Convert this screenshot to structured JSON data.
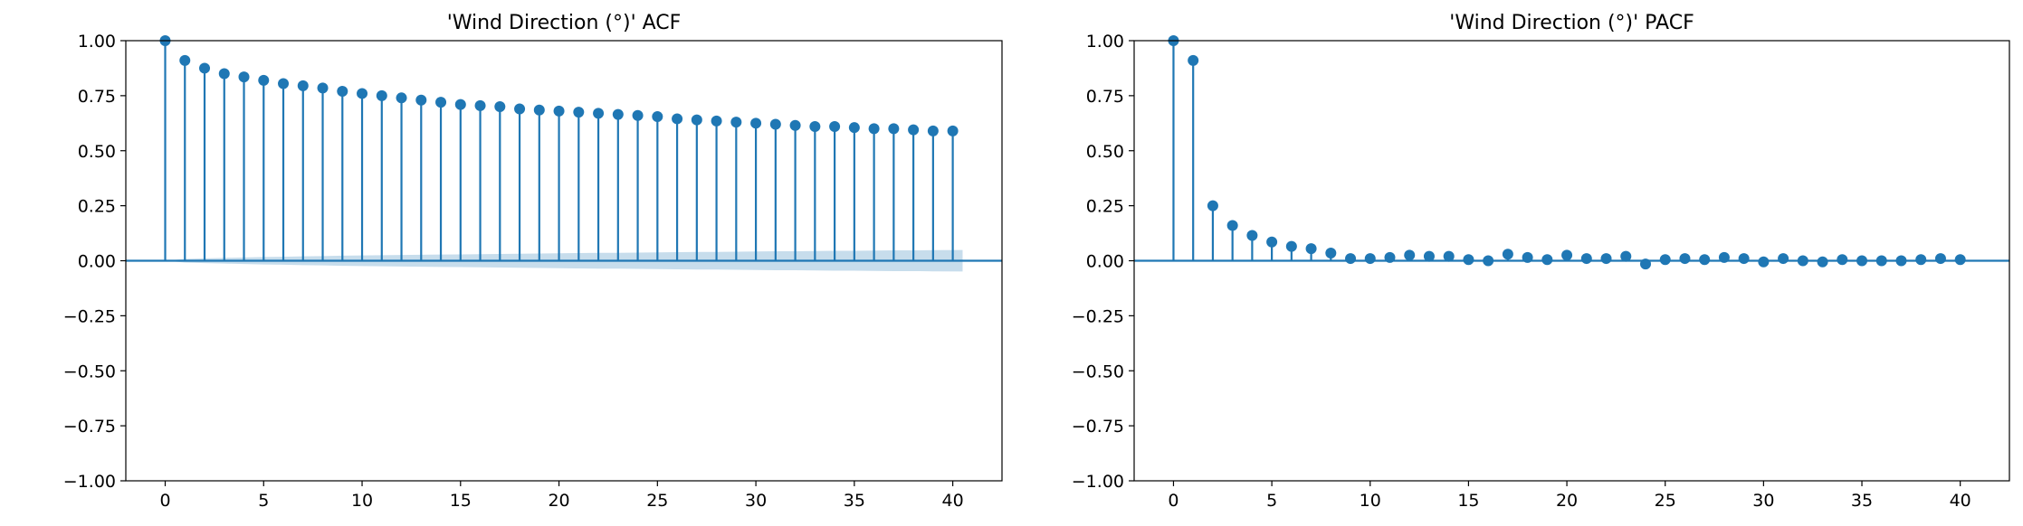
{
  "chart_data": [
    {
      "type": "stem",
      "title": "'Wind Direction (°)' ACF",
      "xlabel": "",
      "ylabel": "",
      "xlim": [
        -2,
        42.5
      ],
      "ylim": [
        -1.0,
        1.0
      ],
      "xticks": [
        0,
        5,
        10,
        15,
        20,
        25,
        30,
        35,
        40
      ],
      "yticks": [
        -1.0,
        -0.75,
        -0.5,
        -0.25,
        0.0,
        0.25,
        0.5,
        0.75,
        1.0
      ],
      "xtick_labels": [
        "0",
        "5",
        "10",
        "15",
        "20",
        "25",
        "30",
        "35",
        "40"
      ],
      "ytick_labels": [
        "−1.00",
        "−0.75",
        "−0.50",
        "−0.25",
        "0.00",
        "0.25",
        "0.50",
        "0.75",
        "1.00"
      ],
      "grid": false,
      "color": "#1f77b4",
      "band_color": "#1f77b4",
      "lags": [
        0,
        1,
        2,
        3,
        4,
        5,
        6,
        7,
        8,
        9,
        10,
        11,
        12,
        13,
        14,
        15,
        16,
        17,
        18,
        19,
        20,
        21,
        22,
        23,
        24,
        25,
        26,
        27,
        28,
        29,
        30,
        31,
        32,
        33,
        34,
        35,
        36,
        37,
        38,
        39,
        40
      ],
      "values": [
        1.0,
        0.91,
        0.875,
        0.85,
        0.835,
        0.82,
        0.805,
        0.795,
        0.785,
        0.77,
        0.76,
        0.75,
        0.74,
        0.73,
        0.72,
        0.71,
        0.705,
        0.7,
        0.69,
        0.685,
        0.68,
        0.675,
        0.67,
        0.665,
        0.66,
        0.655,
        0.645,
        0.64,
        0.635,
        0.63,
        0.625,
        0.62,
        0.615,
        0.61,
        0.61,
        0.605,
        0.6,
        0.6,
        0.595,
        0.59,
        0.59
      ],
      "confidence_band": {
        "lags": [
          0,
          1,
          2,
          3,
          4,
          5,
          6,
          7,
          8,
          9,
          10,
          11,
          12,
          13,
          14,
          15,
          16,
          17,
          18,
          19,
          20,
          21,
          22,
          23,
          24,
          25,
          26,
          27,
          28,
          29,
          30,
          31,
          32,
          33,
          34,
          35,
          36,
          37,
          38,
          39,
          40
        ],
        "halfwidth": [
          0.0,
          0.008,
          0.011,
          0.013,
          0.015,
          0.017,
          0.018,
          0.02,
          0.021,
          0.023,
          0.024,
          0.025,
          0.026,
          0.027,
          0.028,
          0.029,
          0.03,
          0.031,
          0.032,
          0.033,
          0.034,
          0.035,
          0.036,
          0.036,
          0.037,
          0.038,
          0.039,
          0.04,
          0.04,
          0.041,
          0.042,
          0.043,
          0.043,
          0.044,
          0.045,
          0.045,
          0.046,
          0.047,
          0.047,
          0.048,
          0.049
        ]
      }
    },
    {
      "type": "stem",
      "title": "'Wind Direction (°)' PACF",
      "xlabel": "",
      "ylabel": "",
      "xlim": [
        -2,
        42.5
      ],
      "ylim": [
        -1.0,
        1.0
      ],
      "xticks": [
        0,
        5,
        10,
        15,
        20,
        25,
        30,
        35,
        40
      ],
      "yticks": [
        -1.0,
        -0.75,
        -0.5,
        -0.25,
        0.0,
        0.25,
        0.5,
        0.75,
        1.0
      ],
      "xtick_labels": [
        "0",
        "5",
        "10",
        "15",
        "20",
        "25",
        "30",
        "35",
        "40"
      ],
      "ytick_labels": [
        "−1.00",
        "−0.75",
        "−0.50",
        "−0.25",
        "0.00",
        "0.25",
        "0.50",
        "0.75",
        "1.00"
      ],
      "grid": false,
      "color": "#1f77b4",
      "band_color": "#1f77b4",
      "lags": [
        0,
        1,
        2,
        3,
        4,
        5,
        6,
        7,
        8,
        9,
        10,
        11,
        12,
        13,
        14,
        15,
        16,
        17,
        18,
        19,
        20,
        21,
        22,
        23,
        24,
        25,
        26,
        27,
        28,
        29,
        30,
        31,
        32,
        33,
        34,
        35,
        36,
        37,
        38,
        39,
        40
      ],
      "values": [
        1.0,
        0.91,
        0.25,
        0.16,
        0.115,
        0.085,
        0.065,
        0.055,
        0.035,
        0.01,
        0.01,
        0.015,
        0.025,
        0.02,
        0.02,
        0.005,
        0.0,
        0.03,
        0.015,
        0.005,
        0.025,
        0.01,
        0.01,
        0.02,
        -0.015,
        0.005,
        0.01,
        0.005,
        0.015,
        0.01,
        -0.005,
        0.01,
        0.0,
        -0.005,
        0.005,
        0.0,
        0.0,
        0.0,
        0.005,
        0.01,
        0.005
      ],
      "confidence_band": {
        "lags": [
          0,
          40
        ],
        "halfwidth": [
          0.003,
          0.003
        ]
      }
    }
  ]
}
